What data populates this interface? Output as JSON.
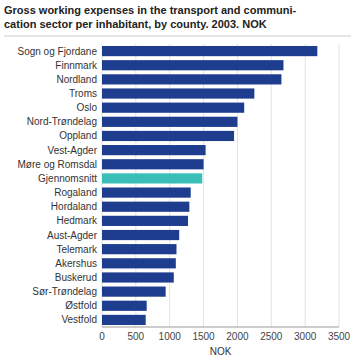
{
  "chart_data": {
    "type": "bar",
    "orientation": "horizontal",
    "title": "Gross working expenses in the transport and communi-\ncation sector per inhabitant, by county. 2003. NOK",
    "categories": [
      "Sogn og Fjordane",
      "Finnmark",
      "Nordland",
      "Troms",
      "Oslo",
      "Nord-Trøndelag",
      "Oppland",
      "Vest-Agder",
      "Møre og Romsdal",
      "Gjennomsnitt",
      "Rogaland",
      "Hordaland",
      "Hedmark",
      "Aust-Agder",
      "Telemark",
      "Akershus",
      "Buskerud",
      "Sør-Trøndelag",
      "Østfold",
      "Vestfold"
    ],
    "values": [
      3180,
      2680,
      2650,
      2250,
      2100,
      2000,
      1950,
      1530,
      1500,
      1480,
      1310,
      1290,
      1270,
      1140,
      1100,
      1090,
      1060,
      940,
      660,
      645
    ],
    "colors": [
      "#1e3d8f",
      "#1e3d8f",
      "#1e3d8f",
      "#1e3d8f",
      "#1e3d8f",
      "#1e3d8f",
      "#1e3d8f",
      "#1e3d8f",
      "#1e3d8f",
      "#3abfb8",
      "#1e3d8f",
      "#1e3d8f",
      "#1e3d8f",
      "#1e3d8f",
      "#1e3d8f",
      "#1e3d8f",
      "#1e3d8f",
      "#1e3d8f",
      "#1e3d8f",
      "#1e3d8f"
    ],
    "xlabel": "NOK",
    "xlim": [
      0,
      3500
    ],
    "xticks": [
      0,
      500,
      1000,
      1500,
      2000,
      2500,
      3000,
      3500
    ],
    "grid": true
  }
}
